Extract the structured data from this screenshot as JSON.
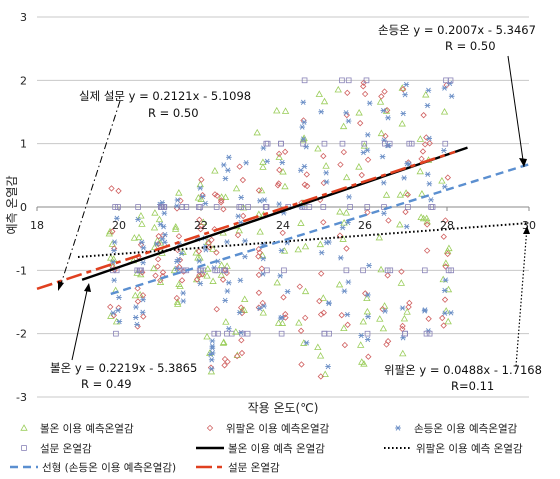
{
  "chart_data": {
    "type": "scatter",
    "xlabel": "작용 온도(℃)",
    "ylabel": "예측 온열감",
    "xlim": [
      18,
      30
    ],
    "ylim": [
      -3,
      3
    ],
    "x_ticks": [
      18,
      20,
      22,
      24,
      26,
      28,
      30
    ],
    "y_ticks": [
      -3,
      -2,
      -1,
      0,
      1,
      2,
      3
    ],
    "grid": "horizontal",
    "legend_placement": "bottom",
    "scatter_series": [
      {
        "name": "볼온 이용 예측온열감",
        "marker": "triangle",
        "color": "#9acd5a"
      },
      {
        "name": "위팔온 이용 예측온열감",
        "marker": "diamond",
        "color": "#d06060"
      },
      {
        "name": "손등온 이용 예측온열감",
        "marker": "asterisk",
        "color": "#6a8ec6"
      },
      {
        "name": "설문 온열감",
        "marker": "square",
        "color": "#8a84b8"
      }
    ],
    "point_clusters": [
      {
        "x": 19.9,
        "y_range": [
          -2.0,
          0.4
        ]
      },
      {
        "x": 20.5,
        "y_range": [
          -1.9,
          0.0
        ]
      },
      {
        "x": 21.0,
        "y_range": [
          -1.2,
          0.2
        ]
      },
      {
        "x": 21.5,
        "y_range": [
          -1.6,
          0.3
        ]
      },
      {
        "x": 22.0,
        "y_range": [
          -1.3,
          0.5
        ]
      },
      {
        "x": 22.3,
        "y_range": [
          -2.6,
          0.7
        ]
      },
      {
        "x": 22.6,
        "y_range": [
          -2.5,
          0.9
        ]
      },
      {
        "x": 23.0,
        "y_range": [
          -2.4,
          0.8
        ]
      },
      {
        "x": 23.5,
        "y_range": [
          -1.8,
          1.2
        ]
      },
      {
        "x": 24.0,
        "y_range": [
          -2.2,
          1.6
        ]
      },
      {
        "x": 24.5,
        "y_range": [
          -2.6,
          2.0
        ]
      },
      {
        "x": 25.0,
        "y_range": [
          -2.8,
          1.9
        ]
      },
      {
        "x": 25.5,
        "y_range": [
          -2.3,
          2.0
        ]
      },
      {
        "x": 26.0,
        "y_range": [
          -2.5,
          2.0
        ]
      },
      {
        "x": 26.5,
        "y_range": [
          -2.2,
          1.9
        ]
      },
      {
        "x": 27.0,
        "y_range": [
          -2.4,
          2.0
        ]
      },
      {
        "x": 27.5,
        "y_range": [
          -2.1,
          1.9
        ]
      },
      {
        "x": 28.0,
        "y_range": [
          -1.9,
          2.0
        ]
      }
    ],
    "lines": [
      {
        "name": "볼온 이용 예측 온열감",
        "slope": 0.2219,
        "intercept": -5.3865,
        "x_range": [
          19.1,
          28.5
        ],
        "style": "solid",
        "color": "#000000"
      },
      {
        "name": "위팔온 이용 예측 온열감",
        "slope": 0.0488,
        "intercept": -1.7168,
        "x_range": [
          19.0,
          30.0
        ],
        "style": "dotted",
        "color": "#000000"
      },
      {
        "name": "선형 (손등온 이용 예측온열감)",
        "slope": 0.2007,
        "intercept": -5.3467,
        "x_range": [
          19.8,
          30.0
        ],
        "style": "dashed",
        "color": "#5b8fd0"
      },
      {
        "name": "설문 온열감",
        "slope": 0.2121,
        "intercept": -5.1098,
        "x_range": [
          18.0,
          28.2
        ],
        "style": "dashdash",
        "color": "#e04020"
      }
    ],
    "annotations": {
      "sodeung": {
        "line1": "손등온 y = 0.2007x - 5.3467",
        "line2": "R = 0.50"
      },
      "survey": {
        "line1": "실제 설문 y = 0.2121x - 5.1098",
        "line2": "R = 0.50"
      },
      "bol": {
        "line1": "볼온 y = 0.2219x - 5.3865",
        "line2": "R = 0.49"
      },
      "wipal": {
        "line1": "위팔온 y = 0.0488x - 1.7168",
        "line2": "R=0.11"
      }
    },
    "legend": [
      {
        "label": "볼온 이용 예측온열감",
        "kind": "triangle",
        "color": "#9acd5a"
      },
      {
        "label": "위팔온 이용 예측온열감",
        "kind": "diamond",
        "color": "#d06060"
      },
      {
        "label": "손등온 이용 예측온열감",
        "kind": "asterisk",
        "color": "#6a8ec6"
      },
      {
        "label": "설문 온열감",
        "kind": "square",
        "color": "#8a84b8"
      },
      {
        "label": "볼온 이용 예측 온열감",
        "kind": "solid",
        "color": "#000000"
      },
      {
        "label": "위팔온 이용 예측 온열감",
        "kind": "dotted",
        "color": "#000000"
      },
      {
        "label": "선형 (손등온 이용 예측온열감)",
        "kind": "dashed",
        "color": "#5b8fd0"
      },
      {
        "label": "설문 온열감",
        "kind": "dashdash",
        "color": "#e04020"
      }
    ]
  }
}
